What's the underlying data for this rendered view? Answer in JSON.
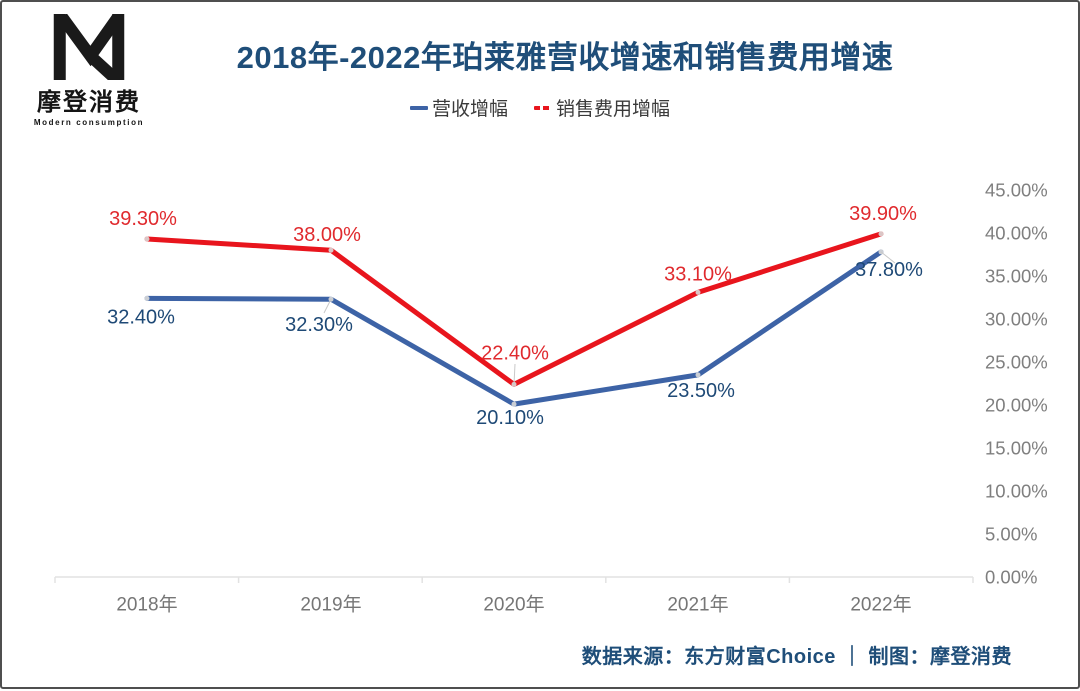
{
  "logo": {
    "name_cn": "摩登消费",
    "name_en": "Modern consumption"
  },
  "title": "2018年-2022年珀莱雅营收增速和销售费用增速",
  "legend": [
    {
      "label": "营收增幅",
      "color": "#3d63a6",
      "marker": "solid-dash"
    },
    {
      "label": "销售费用增幅",
      "color": "#e8151d",
      "marker": "double-dash"
    }
  ],
  "footer": "数据来源：东方财富Choice ｜ 制图：摩登消费",
  "chart_data": {
    "type": "line",
    "title": "2018年-2022年珀莱雅营收增速和销售费用增速",
    "categories": [
      "2018年",
      "2019年",
      "2020年",
      "2021年",
      "2022年"
    ],
    "series": [
      {
        "name": "营收增幅",
        "color": "#3d63a6",
        "label_color": "#1e4976",
        "values": [
          32.4,
          32.3,
          20.1,
          23.5,
          37.8
        ],
        "labels": [
          "32.40%",
          "32.30%",
          "20.10%",
          "23.50%",
          "37.80%"
        ]
      },
      {
        "name": "销售费用增幅",
        "color": "#e8151d",
        "label_color": "#e02a2e",
        "values": [
          39.3,
          38.0,
          22.4,
          33.1,
          39.9
        ],
        "labels": [
          "39.30%",
          "38.00%",
          "22.40%",
          "33.10%",
          "39.90%"
        ]
      }
    ],
    "y_axis": {
      "side": "right",
      "min": 0,
      "max": 45,
      "ticks": [
        "45.00%",
        "40.00%",
        "35.00%",
        "30.00%",
        "25.00%",
        "20.00%",
        "15.00%",
        "10.00%",
        "5.00%",
        "0.00%"
      ],
      "tick_color": "#7f7f7f"
    },
    "x_axis": {
      "label_color": "#767676",
      "line_color": "#e2e2e2"
    },
    "grid": false,
    "legend_position": "top",
    "data_label_font_size": 20
  }
}
